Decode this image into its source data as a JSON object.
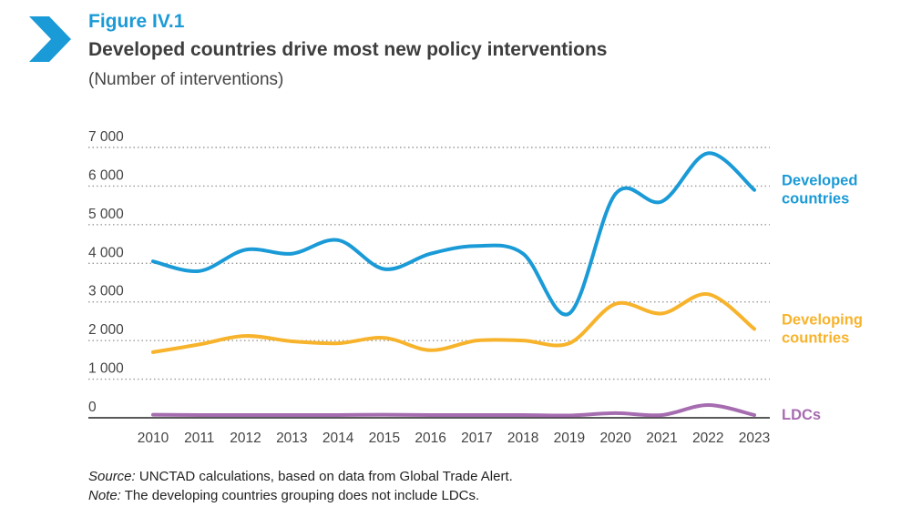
{
  "figure": {
    "label": "Figure IV.1",
    "title": "Developed countries drive most new policy interventions",
    "subtitle": "(Number of interventions)"
  },
  "chart_data": {
    "type": "line",
    "title": "Developed countries drive most new policy interventions",
    "subtitle": "(Number of interventions)",
    "x": [
      2010,
      2011,
      2012,
      2013,
      2014,
      2015,
      2016,
      2017,
      2018,
      2019,
      2020,
      2021,
      2022,
      2023
    ],
    "x_tick_labels": [
      "2010",
      "2011",
      "2012",
      "2013",
      "2014",
      "2015",
      "2016",
      "2017",
      "2018",
      "2019",
      "2020",
      "2021",
      "2022",
      "2023"
    ],
    "y_tick_labels": [
      "0",
      "1 000",
      "2 000",
      "3 000",
      "4 000",
      "5 000",
      "6 000",
      "7 000"
    ],
    "y_ticks": [
      0,
      1000,
      2000,
      3000,
      4000,
      5000,
      6000,
      7000
    ],
    "ylim": [
      0,
      7000
    ],
    "grid": "horizontal dotted",
    "legend": "right (inline labels)",
    "series": [
      {
        "name": "Developed countries",
        "label_lines": [
          "Developed",
          "countries"
        ],
        "color": "#1a9ad6",
        "values": [
          4050,
          3800,
          4350,
          4250,
          4600,
          3850,
          4250,
          4450,
          4250,
          2700,
          5800,
          5600,
          6850,
          5900
        ]
      },
      {
        "name": "Developing countries",
        "label_lines": [
          "Developing",
          "countries"
        ],
        "color": "#f7b32b",
        "values": [
          1700,
          1900,
          2120,
          1980,
          1930,
          2070,
          1750,
          2000,
          2000,
          1930,
          2950,
          2700,
          3200,
          2300
        ]
      },
      {
        "name": "LDCs",
        "label_lines": [
          "LDCs"
        ],
        "color": "#a66cb0",
        "values": [
          80,
          70,
          70,
          70,
          70,
          80,
          70,
          70,
          70,
          60,
          120,
          70,
          330,
          70
        ]
      }
    ]
  },
  "footnotes": {
    "source_prefix": "Source:",
    "source_text": " UNCTAD calculations, based on data from Global Trade Alert.",
    "note_prefix": "Note:",
    "note_text": " The developing countries grouping does not include LDCs."
  },
  "colors": {
    "accent": "#1a9ad6",
    "grid": "#9a9a9a",
    "axis": "#222222"
  }
}
